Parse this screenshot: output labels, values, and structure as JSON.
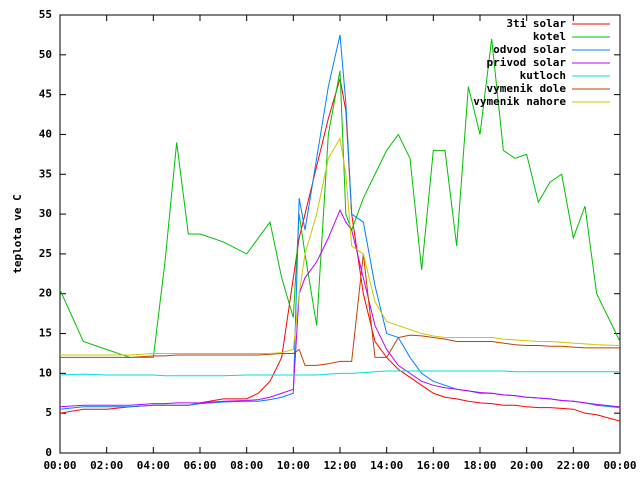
{
  "chart_data": {
    "type": "line",
    "ylabel": "teplota ve C",
    "x": [
      0,
      1,
      2,
      3,
      4,
      4.5,
      5,
      5.5,
      6,
      7,
      8,
      8.5,
      9,
      9.5,
      10,
      10.25,
      10.5,
      11,
      11.5,
      12,
      12.25,
      12.5,
      13,
      13.5,
      14,
      14.5,
      15,
      15.5,
      16,
      16.5,
      17,
      17.5,
      18,
      18.5,
      19,
      19.5,
      20,
      20.5,
      21,
      21.5,
      22,
      22.5,
      23,
      24
    ],
    "series": [
      {
        "name": "3ti solar",
        "color": "#ff0000",
        "values": [
          5,
          5.5,
          5.5,
          5.8,
          6,
          6,
          6,
          6,
          6.3,
          6.8,
          6.8,
          7.5,
          9,
          12,
          22,
          27,
          30,
          36,
          42,
          47,
          43,
          30,
          20,
          14,
          12,
          10.5,
          9.5,
          8.5,
          7.5,
          7,
          6.8,
          6.5,
          6.3,
          6.2,
          6,
          6,
          5.8,
          5.7,
          5.7,
          5.6,
          5.5,
          5,
          4.8,
          4
        ]
      },
      {
        "name": "kotel",
        "color": "#00c000",
        "values": [
          20.5,
          14,
          13,
          12,
          12,
          24,
          39,
          27.5,
          27.5,
          26.5,
          25,
          27,
          29,
          22,
          17,
          30,
          25,
          16,
          40,
          48,
          30,
          28,
          32,
          35,
          38,
          40,
          37,
          23,
          38,
          38,
          26,
          46,
          40,
          52,
          38,
          37,
          37.5,
          31.5,
          34,
          35,
          27,
          31,
          20,
          14
        ]
      },
      {
        "name": "odvod solar",
        "color": "#0080ff",
        "values": [
          5.5,
          5.8,
          5.8,
          5.8,
          6,
          6,
          6,
          6,
          6.2,
          6.4,
          6.5,
          6.5,
          6.7,
          7,
          7.5,
          32,
          28,
          37,
          46,
          52.5,
          44,
          30,
          29,
          21,
          15,
          14.5,
          12,
          10,
          9,
          8.5,
          8,
          7.8,
          7.5,
          7.5,
          7.3,
          7.2,
          7,
          6.9,
          6.8,
          6.6,
          6.5,
          6.3,
          6,
          5.7
        ]
      },
      {
        "name": "privod solar",
        "color": "#c000ff",
        "values": [
          5.8,
          6,
          6,
          6,
          6.2,
          6.2,
          6.3,
          6.3,
          6.3,
          6.5,
          6.6,
          6.7,
          7,
          7.5,
          8,
          20,
          22,
          24,
          27,
          30.5,
          29,
          28,
          22,
          16,
          13,
          11,
          10,
          9,
          8.5,
          8.2,
          8,
          7.8,
          7.6,
          7.5,
          7.3,
          7.2,
          7,
          6.9,
          6.8,
          6.6,
          6.5,
          6.3,
          6.1,
          5.8
        ]
      },
      {
        "name": "kutloch",
        "color": "#00dddd",
        "values": [
          9.8,
          9.9,
          9.8,
          9.8,
          9.8,
          9.7,
          9.7,
          9.7,
          9.7,
          9.7,
          9.8,
          9.8,
          9.8,
          9.8,
          9.8,
          9.8,
          9.8,
          9.8,
          9.9,
          10,
          10,
          10,
          10.1,
          10.2,
          10.3,
          10.3,
          10.3,
          10.3,
          10.3,
          10.3,
          10.3,
          10.3,
          10.3,
          10.3,
          10.3,
          10.2,
          10.2,
          10.2,
          10.2,
          10.2,
          10.2,
          10.2,
          10.2,
          10.2
        ]
      },
      {
        "name": "vymenik dole",
        "color": "#c04000",
        "values": [
          12,
          12,
          12,
          12,
          12.2,
          12.2,
          12.3,
          12.3,
          12.3,
          12.3,
          12.3,
          12.3,
          12.4,
          12.5,
          12.5,
          13,
          11,
          11,
          11.2,
          11.5,
          11.5,
          11.5,
          25,
          12,
          12,
          14.5,
          14.8,
          14.7,
          14.5,
          14.3,
          14,
          14,
          14,
          14,
          13.8,
          13.6,
          13.5,
          13.5,
          13.4,
          13.4,
          13.3,
          13.2,
          13.2,
          13.2
        ]
      },
      {
        "name": "vymenik nahore",
        "color": "#c8c800",
        "values": [
          12.3,
          12.3,
          12.3,
          12.3,
          12.5,
          12.5,
          12.5,
          12.5,
          12.5,
          12.5,
          12.5,
          12.5,
          12.5,
          12.6,
          13,
          20,
          25,
          30,
          37,
          39.5,
          35,
          26,
          25,
          19,
          16.5,
          16,
          15.5,
          15,
          14.7,
          14.5,
          14.5,
          14.5,
          14.5,
          14.5,
          14.3,
          14.2,
          14.1,
          14,
          14,
          13.9,
          13.8,
          13.7,
          13.6,
          13.5
        ]
      }
    ],
    "xlim": [
      0,
      24
    ],
    "xticks": [
      {
        "value": 0,
        "label": "00:00"
      },
      {
        "value": 2,
        "label": "02:00"
      },
      {
        "value": 4,
        "label": "04:00"
      },
      {
        "value": 6,
        "label": "06:00"
      },
      {
        "value": 8,
        "label": "08:00"
      },
      {
        "value": 10,
        "label": "10:00"
      },
      {
        "value": 12,
        "label": "12:00"
      },
      {
        "value": 14,
        "label": "14:00"
      },
      {
        "value": 16,
        "label": "16:00"
      },
      {
        "value": 18,
        "label": "18:00"
      },
      {
        "value": 20,
        "label": "20:00"
      },
      {
        "value": 22,
        "label": "22:00"
      },
      {
        "value": 24,
        "label": "00:00"
      }
    ],
    "ylim": [
      0,
      55
    ],
    "yticks": [
      0,
      5,
      10,
      15,
      20,
      25,
      30,
      35,
      40,
      45,
      50,
      55
    ],
    "legend": "top-right"
  }
}
